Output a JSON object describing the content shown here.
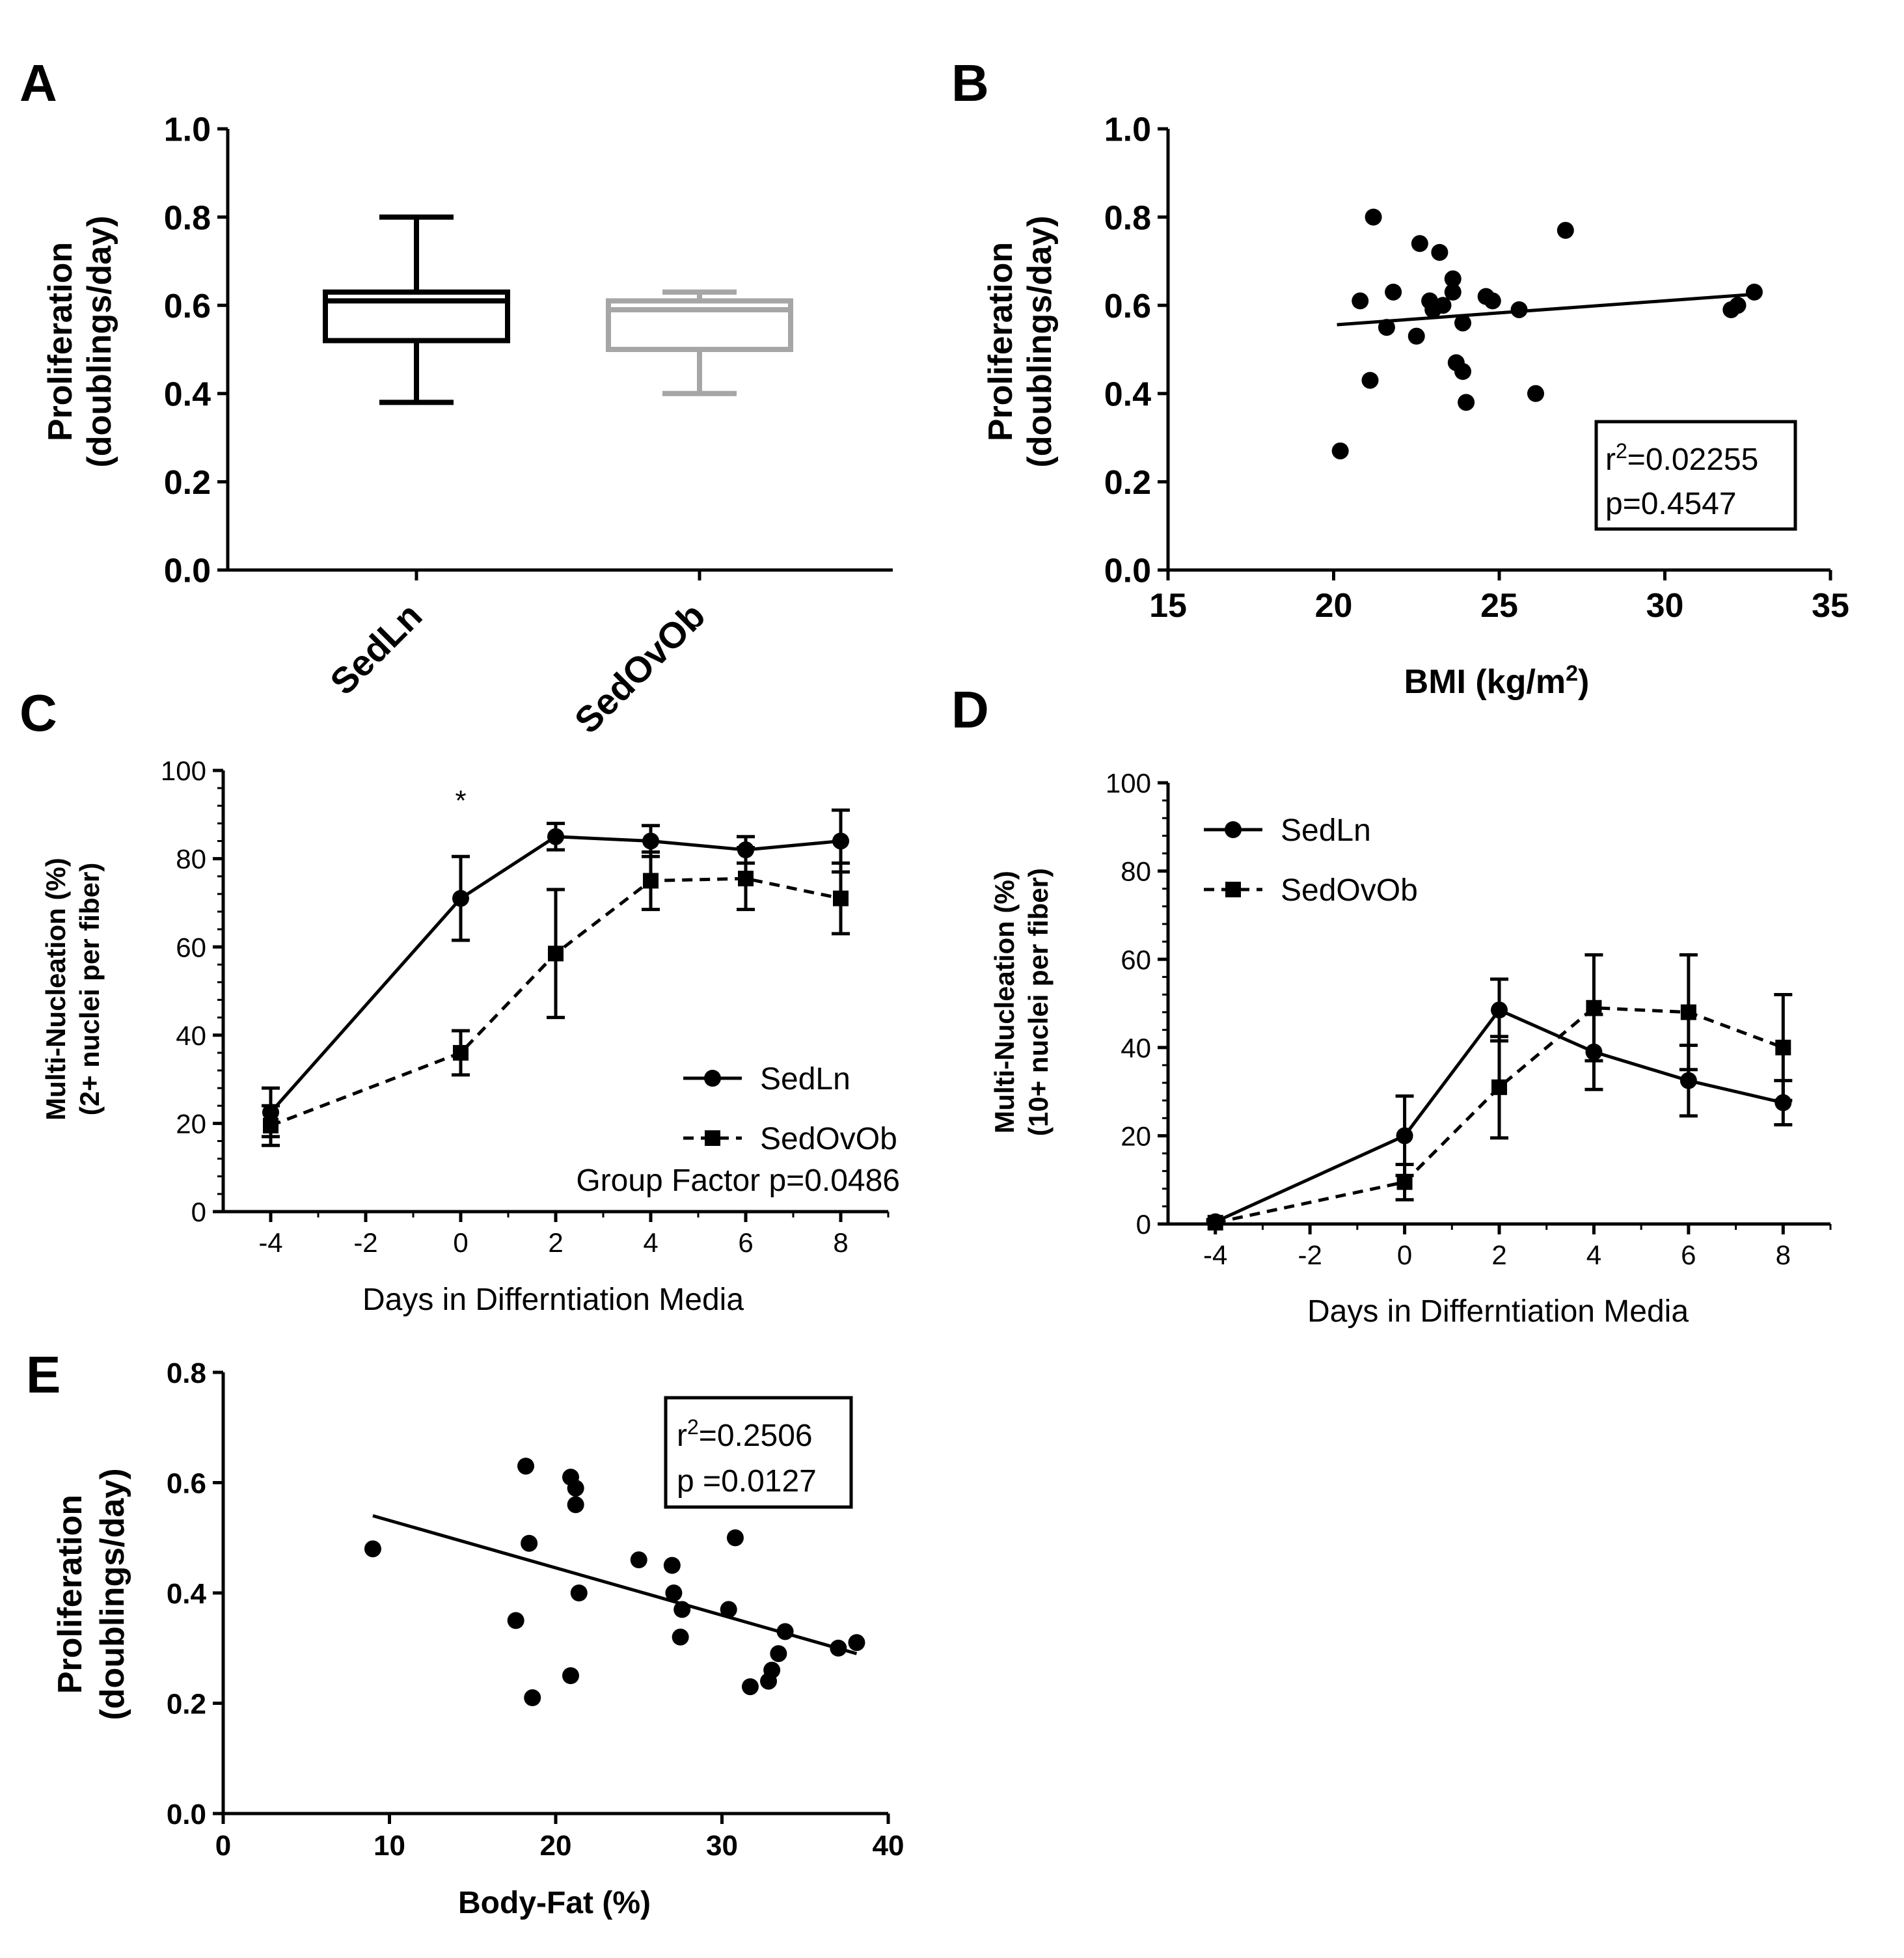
{
  "chart_data": [
    {
      "panel": "A",
      "type": "box",
      "ylabel_line1": "Proliferation",
      "ylabel_line2": "(doublings/day)",
      "ylim": [
        0,
        1.0
      ],
      "yticks": [
        "0.0",
        "0.2",
        "0.4",
        "0.6",
        "0.8",
        "1.0"
      ],
      "categories": [
        "SedLn",
        "SedOvOb"
      ],
      "boxes": [
        {
          "name": "SedLn",
          "min": 0.38,
          "q1": 0.52,
          "median": 0.61,
          "q3": 0.63,
          "max": 0.8,
          "color": "#000000"
        },
        {
          "name": "SedOvOb",
          "min": 0.4,
          "q1": 0.5,
          "median": 0.59,
          "q3": 0.61,
          "max": 0.63,
          "color": "#a6a6a6"
        }
      ]
    },
    {
      "panel": "B",
      "type": "scatter",
      "ylabel_line1": "Proliferation",
      "ylabel_line2": "(doublings/day)",
      "xlabel_main": "BMI (kg/m",
      "xlabel_sup": "2",
      "xlabel_end": ")",
      "xlim": [
        15,
        35
      ],
      "ylim": [
        0,
        1.0
      ],
      "xticks": [
        "15",
        "20",
        "25",
        "30",
        "35"
      ],
      "yticks": [
        "0.0",
        "0.2",
        "0.4",
        "0.6",
        "0.8",
        "1.0"
      ],
      "points": [
        [
          20.2,
          0.27
        ],
        [
          20.8,
          0.61
        ],
        [
          21.1,
          0.43
        ],
        [
          21.2,
          0.8
        ],
        [
          21.6,
          0.55
        ],
        [
          21.8,
          0.63
        ],
        [
          22.5,
          0.53
        ],
        [
          22.6,
          0.74
        ],
        [
          22.9,
          0.61
        ],
        [
          23.0,
          0.59
        ],
        [
          23.2,
          0.72
        ],
        [
          23.3,
          0.6
        ],
        [
          23.6,
          0.63
        ],
        [
          23.6,
          0.66
        ],
        [
          23.7,
          0.47
        ],
        [
          23.9,
          0.56
        ],
        [
          23.9,
          0.45
        ],
        [
          24.0,
          0.38
        ],
        [
          24.6,
          0.62
        ],
        [
          24.8,
          0.61
        ],
        [
          25.6,
          0.59
        ],
        [
          26.1,
          0.4
        ],
        [
          27.0,
          0.77
        ],
        [
          32.0,
          0.59
        ],
        [
          32.2,
          0.6
        ],
        [
          32.7,
          0.63
        ]
      ],
      "fit": {
        "x": [
          20.1,
          32.7
        ],
        "y": [
          0.556,
          0.625
        ]
      },
      "annotation_r_prefix": "r",
      "annotation_r_sup": "2",
      "annotation_r_value": "=0.02255",
      "annotation_p": "p=0.4547"
    },
    {
      "panel": "C",
      "type": "line",
      "ylabel_line1": "Multi-Nucleation (%)",
      "ylabel_line2": "(2+ nuclei per fiber)",
      "xlabel": "Days in Differntiation Media",
      "xlim": [
        -5,
        9
      ],
      "ylim": [
        0,
        100
      ],
      "x": [
        -4,
        0,
        2,
        4,
        6,
        8
      ],
      "xticks": [
        "-4",
        "-2",
        "0",
        "2",
        "4",
        "6",
        "8"
      ],
      "yticks": [
        "0",
        "20",
        "40",
        "60",
        "80",
        "100"
      ],
      "series": [
        {
          "name": "SedLn",
          "marker": "circle",
          "dash": "solid",
          "values": [
            22.5,
            71,
            85,
            84,
            82,
            84
          ],
          "errors": [
            5.5,
            9.5,
            3,
            3.5,
            3,
            7
          ]
        },
        {
          "name": "SedOvOb",
          "marker": "square",
          "dash": "dashed",
          "values": [
            19.5,
            36,
            58.5,
            75,
            75.5,
            71
          ],
          "errors": [
            4.5,
            5,
            14.5,
            6.5,
            7,
            8
          ]
        }
      ],
      "star": "*",
      "group_factor": "Group Factor p=0.0486"
    },
    {
      "panel": "D",
      "type": "line",
      "ylabel_line1": "Multi-Nucleation (%)",
      "ylabel_line2": "(10+ nuclei per fiber)",
      "xlabel": "Days in Differntiation Media",
      "xlim": [
        -5,
        9
      ],
      "ylim": [
        0,
        100
      ],
      "x": [
        -4,
        0,
        2,
        4,
        6,
        8
      ],
      "xticks": [
        "-4",
        "-2",
        "0",
        "2",
        "4",
        "6",
        "8"
      ],
      "yticks": [
        "0",
        "20",
        "40",
        "60",
        "80",
        "100"
      ],
      "series": [
        {
          "name": "SedLn",
          "marker": "circle",
          "dash": "solid",
          "values": [
            0.5,
            20,
            48.5,
            39,
            32.5,
            27.5
          ],
          "errors": [
            0.5,
            9,
            7,
            8.5,
            8,
            5
          ]
        },
        {
          "name": "SedOvOb",
          "marker": "square",
          "dash": "dashed",
          "values": [
            0.3,
            9.5,
            31,
            49,
            48,
            40
          ],
          "errors": [
            0.3,
            4,
            11.5,
            12,
            13,
            12
          ]
        }
      ]
    },
    {
      "panel": "E",
      "type": "scatter",
      "ylabel_line1": "Proliferation",
      "ylabel_line2": "(doublings/day)",
      "xlabel": "Body-Fat (%)",
      "xlim": [
        0,
        40
      ],
      "ylim": [
        0,
        0.8
      ],
      "xticks": [
        "0",
        "10",
        "20",
        "30",
        "40"
      ],
      "yticks": [
        "0.0",
        "0.2",
        "0.4",
        "0.6",
        "0.8"
      ],
      "points": [
        [
          9.0,
          0.48
        ],
        [
          17.6,
          0.35
        ],
        [
          18.2,
          0.63
        ],
        [
          18.4,
          0.49
        ],
        [
          18.6,
          0.21
        ],
        [
          20.9,
          0.25
        ],
        [
          20.9,
          0.61
        ],
        [
          21.2,
          0.59
        ],
        [
          21.2,
          0.56
        ],
        [
          21.4,
          0.4
        ],
        [
          25.0,
          0.46
        ],
        [
          27.0,
          0.45
        ],
        [
          27.1,
          0.4
        ],
        [
          27.5,
          0.32
        ],
        [
          27.6,
          0.37
        ],
        [
          30.4,
          0.37
        ],
        [
          30.8,
          0.5
        ],
        [
          31.7,
          0.23
        ],
        [
          32.8,
          0.24
        ],
        [
          33.0,
          0.26
        ],
        [
          33.4,
          0.29
        ],
        [
          33.8,
          0.33
        ],
        [
          37.0,
          0.3
        ],
        [
          38.1,
          0.31
        ]
      ],
      "fit": {
        "x": [
          9.0,
          38.1
        ],
        "y": [
          0.54,
          0.29
        ]
      },
      "annotation_r_prefix": "r",
      "annotation_r_sup": "2",
      "annotation_r_value": "=0.2506",
      "annotation_p": "p =0.0127"
    }
  ],
  "panel_labels": [
    "A",
    "B",
    "C",
    "D",
    "E"
  ]
}
